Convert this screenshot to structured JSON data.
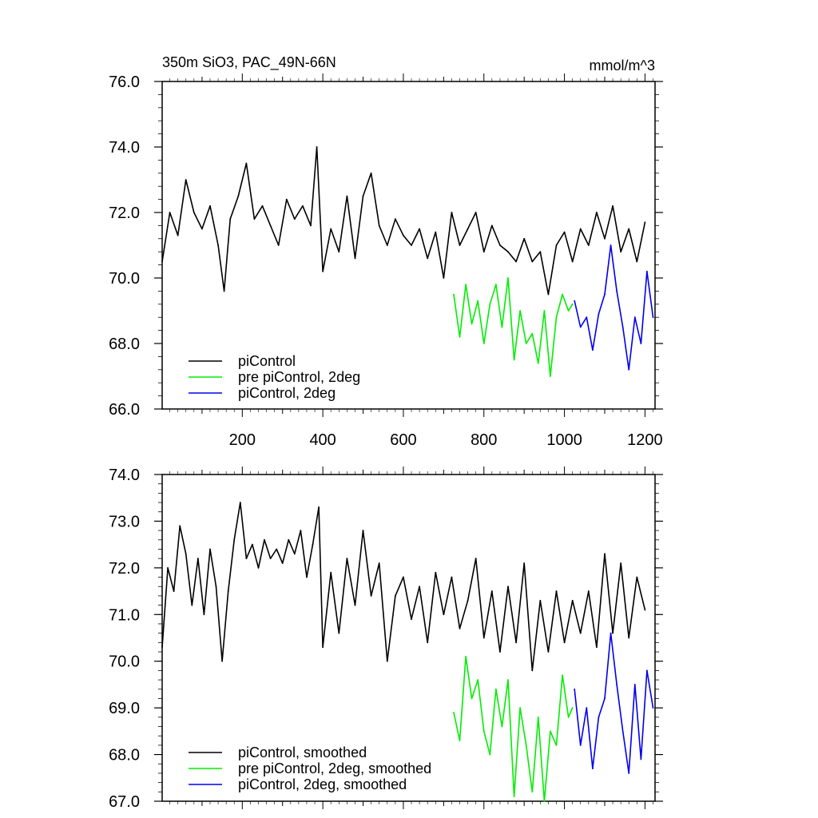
{
  "chart_data": [
    {
      "type": "line",
      "title": "350m SiO3, PAC_49N-66N",
      "units": "mmol/m^3",
      "xlabel": "",
      "ylabel": "",
      "xlim": [
        1,
        1225
      ],
      "ylim": [
        66.0,
        76.0
      ],
      "xticks": [
        200,
        400,
        600,
        800,
        1000,
        1200
      ],
      "xtick_labels": [
        "200",
        "400",
        "600",
        "800",
        "1000",
        "1200"
      ],
      "yticks": [
        66,
        68,
        70,
        72,
        74,
        76
      ],
      "ytick_labels": [
        "66.0",
        "68.0",
        "70.0",
        "72.0",
        "74.0",
        "76.0"
      ],
      "grid": false,
      "legend_position": "bottom-left",
      "series": [
        {
          "name": "piControl",
          "color": "#000000",
          "x": [
            1,
            20,
            40,
            60,
            80,
            100,
            120,
            140,
            155,
            170,
            190,
            210,
            230,
            250,
            270,
            290,
            310,
            330,
            350,
            370,
            385,
            400,
            420,
            440,
            460,
            480,
            500,
            520,
            540,
            560,
            580,
            600,
            620,
            640,
            660,
            680,
            700,
            720,
            740,
            760,
            780,
            800,
            820,
            840,
            860,
            880,
            900,
            920,
            940,
            960,
            980,
            1000,
            1020,
            1040,
            1060,
            1080,
            1100,
            1120,
            1140,
            1160,
            1180,
            1200
          ],
          "y": [
            70.5,
            72.0,
            71.3,
            73.0,
            72.0,
            71.5,
            72.2,
            71.0,
            69.6,
            71.8,
            72.5,
            73.5,
            71.8,
            72.2,
            71.6,
            71.0,
            72.4,
            71.8,
            72.2,
            71.6,
            74.0,
            70.2,
            71.5,
            70.8,
            72.5,
            70.6,
            72.5,
            73.2,
            71.6,
            71.0,
            71.8,
            71.3,
            71.0,
            71.5,
            70.6,
            71.4,
            70.0,
            72.0,
            71.0,
            71.5,
            72.0,
            70.8,
            71.6,
            71.0,
            70.8,
            70.5,
            71.2,
            70.5,
            70.8,
            69.5,
            71.0,
            71.4,
            70.5,
            71.5,
            71.0,
            72.0,
            71.2,
            72.2,
            70.8,
            71.5,
            70.5,
            71.7
          ]
        },
        {
          "name": "pre piControl, 2deg",
          "color": "#00ee00",
          "x": [
            725,
            740,
            755,
            770,
            785,
            800,
            815,
            830,
            845,
            860,
            875,
            890,
            905,
            920,
            935,
            950,
            965,
            980,
            995,
            1010,
            1020
          ],
          "y": [
            69.5,
            68.2,
            69.8,
            68.6,
            69.3,
            68.0,
            69.2,
            69.8,
            68.5,
            70.0,
            67.5,
            69.0,
            68.0,
            68.3,
            67.4,
            69.0,
            67.0,
            68.8,
            69.5,
            69.0,
            69.2
          ]
        },
        {
          "name": "piControl, 2deg",
          "color": "#0000ee",
          "x": [
            1025,
            1040,
            1055,
            1070,
            1085,
            1100,
            1115,
            1130,
            1145,
            1160,
            1175,
            1190,
            1205,
            1220
          ],
          "y": [
            69.3,
            68.5,
            68.8,
            67.8,
            68.9,
            69.5,
            71.0,
            69.6,
            68.5,
            67.2,
            68.8,
            68.0,
            70.2,
            68.8
          ]
        }
      ]
    },
    {
      "type": "line",
      "title": "",
      "xlabel": "",
      "ylabel": "",
      "xlim": [
        1,
        1225
      ],
      "ylim": [
        67.0,
        74.0
      ],
      "yticks": [
        67,
        68,
        69,
        70,
        71,
        72,
        73,
        74
      ],
      "ytick_labels": [
        "67.0",
        "68.0",
        "69.0",
        "70.0",
        "71.0",
        "72.0",
        "73.0",
        "74.0"
      ],
      "grid": false,
      "legend_position": "bottom-left",
      "series": [
        {
          "name": "piControl, smoothed",
          "color": "#000000",
          "x": [
            1,
            15,
            30,
            45,
            60,
            75,
            90,
            105,
            120,
            135,
            150,
            165,
            180,
            195,
            210,
            225,
            240,
            255,
            270,
            285,
            300,
            315,
            330,
            345,
            360,
            375,
            390,
            400,
            420,
            440,
            460,
            480,
            500,
            520,
            540,
            560,
            580,
            600,
            620,
            640,
            660,
            680,
            700,
            720,
            740,
            760,
            780,
            800,
            820,
            840,
            860,
            880,
            900,
            920,
            940,
            960,
            980,
            1000,
            1020,
            1040,
            1060,
            1080,
            1100,
            1120,
            1140,
            1160,
            1180,
            1200
          ],
          "y": [
            70.3,
            72.0,
            71.5,
            72.9,
            72.3,
            71.2,
            72.2,
            71.0,
            72.4,
            71.6,
            70.0,
            71.5,
            72.6,
            73.4,
            72.2,
            72.5,
            72.0,
            72.6,
            72.2,
            72.4,
            72.1,
            72.6,
            72.3,
            72.8,
            71.8,
            72.5,
            73.3,
            70.3,
            71.9,
            70.6,
            72.2,
            71.2,
            72.8,
            71.4,
            72.1,
            70.0,
            71.4,
            71.8,
            70.9,
            71.6,
            70.4,
            71.9,
            71.0,
            71.8,
            70.7,
            71.3,
            72.2,
            70.5,
            71.5,
            70.2,
            71.6,
            70.4,
            72.1,
            69.8,
            71.3,
            70.2,
            71.5,
            70.4,
            71.3,
            70.6,
            71.5,
            70.3,
            72.3,
            70.6,
            72.1,
            70.5,
            71.8,
            71.1
          ]
        },
        {
          "name": "pre piControl, 2deg, smoothed",
          "color": "#00ee00",
          "x": [
            725,
            740,
            755,
            770,
            785,
            800,
            815,
            830,
            845,
            860,
            875,
            890,
            905,
            920,
            935,
            950,
            965,
            980,
            995,
            1010,
            1020
          ],
          "y": [
            68.9,
            68.3,
            70.1,
            69.2,
            69.6,
            68.5,
            68.0,
            69.4,
            68.6,
            69.6,
            67.1,
            69.0,
            68.2,
            67.2,
            68.8,
            67.0,
            68.5,
            68.2,
            69.7,
            68.8,
            69.0
          ]
        },
        {
          "name": "piControl, 2deg, smoothed",
          "color": "#0000ee",
          "x": [
            1025,
            1040,
            1055,
            1070,
            1085,
            1100,
            1115,
            1130,
            1145,
            1160,
            1175,
            1190,
            1205,
            1220
          ],
          "y": [
            69.4,
            68.2,
            69.0,
            67.7,
            68.8,
            69.2,
            70.6,
            69.5,
            68.5,
            67.6,
            69.5,
            67.9,
            69.8,
            69.0
          ]
        }
      ]
    }
  ]
}
